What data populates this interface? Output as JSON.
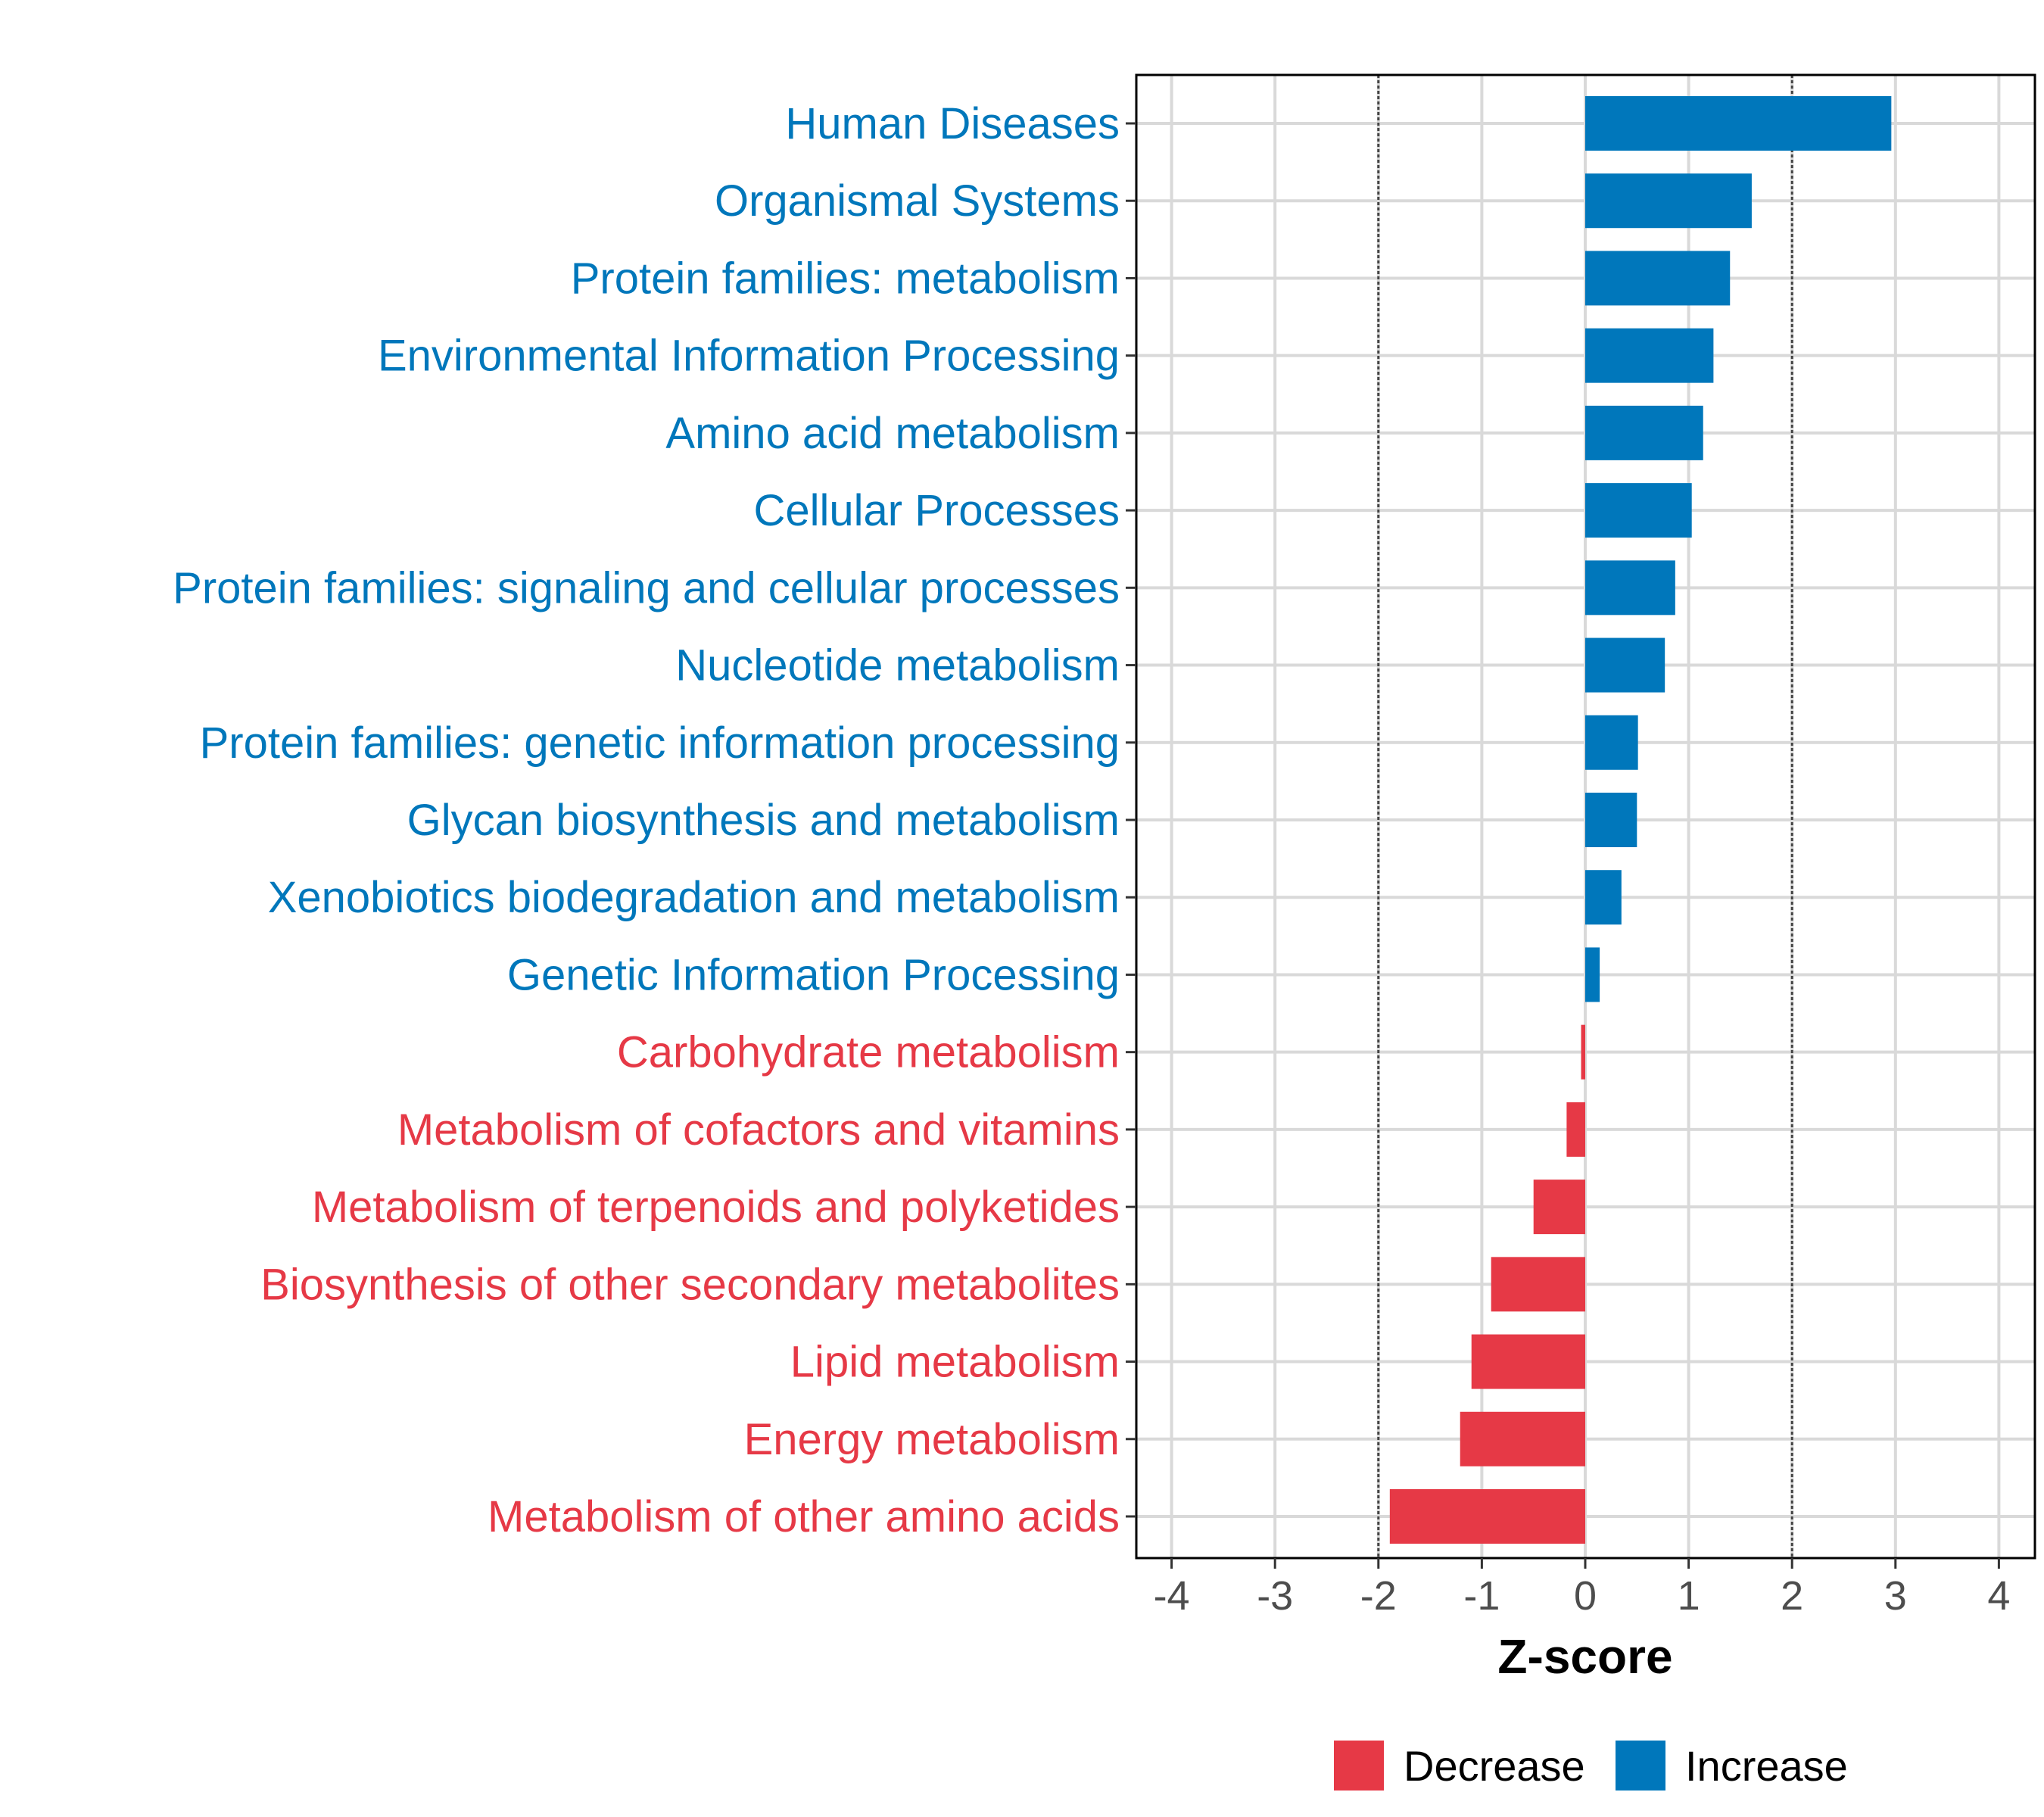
{
  "chart_data": {
    "type": "bar",
    "orientation": "horizontal",
    "title": "",
    "xlabel": "Z-score",
    "ylabel": "",
    "xlim": [
      -4.4,
      4.35
    ],
    "xticks": [
      -4,
      -3,
      -2,
      -1,
      0,
      1,
      2,
      3,
      4
    ],
    "reference_lines": [
      -2,
      2
    ],
    "grid": true,
    "legend_position": "bottom",
    "legend": [
      {
        "label": "Decrease",
        "color": "#e63946"
      },
      {
        "label": "Increase",
        "color": "#0077bb"
      }
    ],
    "categories": [
      "Human Diseases",
      "Organismal Systems",
      "Protein families: metabolism",
      "Environmental Information Processing",
      "Amino acid metabolism",
      "Cellular Processes",
      "Protein families: signaling and cellular processes",
      "Nucleotide metabolism",
      "Protein families: genetic information processing",
      "Glycan biosynthesis and metabolism",
      "Xenobiotics biodegradation and metabolism",
      "Genetic Information Processing",
      "Carbohydrate metabolism",
      "Metabolism of cofactors and vitamins",
      "Metabolism of terpenoids and polyketides",
      "Biosynthesis of other secondary metabolites",
      "Lipid metabolism",
      "Energy metabolism",
      "Metabolism of other amino acids"
    ],
    "values": [
      2.96,
      1.61,
      1.4,
      1.24,
      1.14,
      1.03,
      0.87,
      0.77,
      0.51,
      0.5,
      0.35,
      0.14,
      -0.04,
      -0.18,
      -0.5,
      -0.91,
      -1.1,
      -1.21,
      -1.89
    ]
  }
}
